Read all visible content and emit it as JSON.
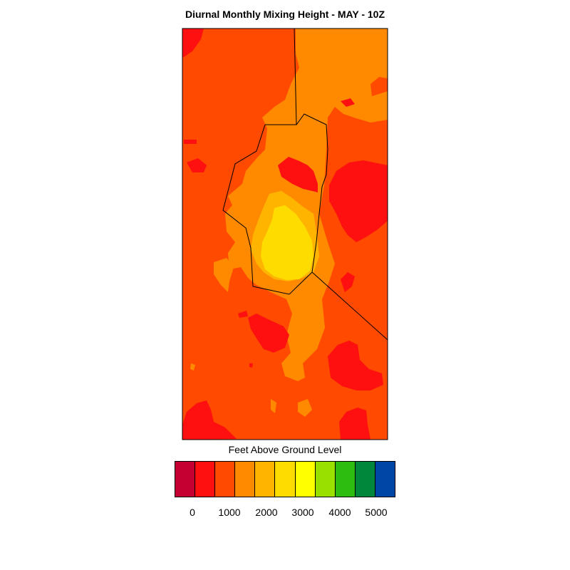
{
  "title": "Diurnal Monthly Mixing Height - MAY - 10Z",
  "legend": {
    "title": "Feet Above Ground Level",
    "colors": [
      "#c40033",
      "#ff1010",
      "#ff4a00",
      "#ff8a00",
      "#ffb400",
      "#ffdc00",
      "#ffff00",
      "#99e000",
      "#2cbd10",
      "#00873c",
      "#0046a6",
      "#0000ff"
    ],
    "tick_labels": [
      "0",
      "1000",
      "2000",
      "3000",
      "4000",
      "5000"
    ]
  },
  "map": {
    "field_colors": {
      "background": "#ff4a00",
      "level_0": "#ff1010",
      "level_1000": "#ff8a00",
      "level_1500": "#ffb400",
      "level_2000": "#ffdc00"
    }
  }
}
